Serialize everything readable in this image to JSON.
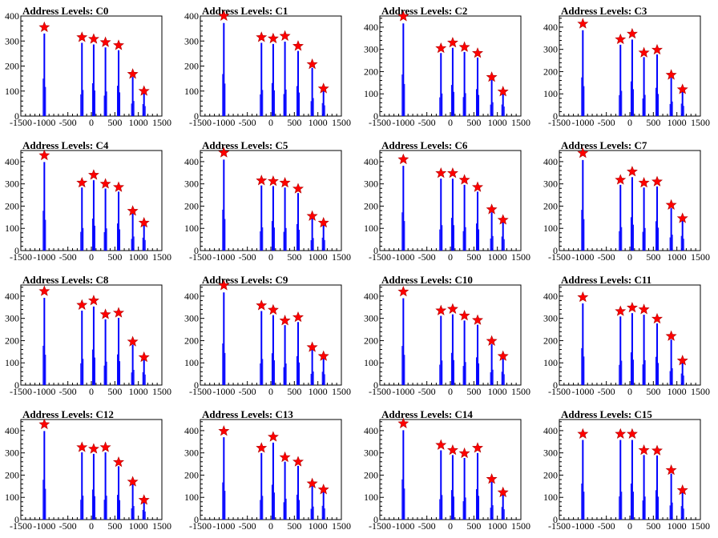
{
  "figure": {
    "x_tick_labels": [
      "-1500",
      "-1000",
      "-500",
      "0",
      "500",
      "1000",
      "1500"
    ],
    "y_tick_labels": [
      "0",
      "100",
      "200",
      "300",
      "400"
    ],
    "colors": {
      "histogram": "#0000ff",
      "peak_marker": "#ff0000",
      "marker_edge": "#b00000",
      "axes": "#000000"
    }
  },
  "chart_data": [
    {
      "type": "bar",
      "title": "Address Levels: C0",
      "xlim": [
        -1500,
        1500
      ],
      "ylim": [
        0,
        400
      ],
      "peaks": [
        {
          "x": -1000,
          "y": 355
        },
        {
          "x": -200,
          "y": 315
        },
        {
          "x": 50,
          "y": 308
        },
        {
          "x": 300,
          "y": 295
        },
        {
          "x": 580,
          "y": 283
        },
        {
          "x": 880,
          "y": 168
        },
        {
          "x": 1120,
          "y": 100
        }
      ]
    },
    {
      "type": "bar",
      "title": "Address Levels: C1",
      "xlim": [
        -1500,
        1500
      ],
      "ylim": [
        0,
        400
      ],
      "peaks": [
        {
          "x": -1000,
          "y": 400
        },
        {
          "x": -200,
          "y": 315
        },
        {
          "x": 50,
          "y": 310
        },
        {
          "x": 300,
          "y": 320
        },
        {
          "x": 580,
          "y": 280
        },
        {
          "x": 880,
          "y": 207
        },
        {
          "x": 1120,
          "y": 110
        }
      ]
    },
    {
      "type": "bar",
      "title": "Address Levels: C2",
      "xlim": [
        -1500,
        1500
      ],
      "ylim": [
        0,
        450
      ],
      "peaks": [
        {
          "x": -1000,
          "y": 448
        },
        {
          "x": -200,
          "y": 305
        },
        {
          "x": 50,
          "y": 330
        },
        {
          "x": 300,
          "y": 310
        },
        {
          "x": 580,
          "y": 283
        },
        {
          "x": 880,
          "y": 175
        },
        {
          "x": 1120,
          "y": 110
        }
      ]
    },
    {
      "type": "bar",
      "title": "Address Levels: C3",
      "xlim": [
        -1500,
        1500
      ],
      "ylim": [
        0,
        450
      ],
      "peaks": [
        {
          "x": -1000,
          "y": 415
        },
        {
          "x": -200,
          "y": 345
        },
        {
          "x": 50,
          "y": 370
        },
        {
          "x": 300,
          "y": 285
        },
        {
          "x": 580,
          "y": 298
        },
        {
          "x": 880,
          "y": 185
        },
        {
          "x": 1120,
          "y": 120
        }
      ]
    },
    {
      "type": "bar",
      "title": "Address Levels: C4",
      "xlim": [
        -1500,
        1500
      ],
      "ylim": [
        0,
        450
      ],
      "peaks": [
        {
          "x": -1000,
          "y": 428
        },
        {
          "x": -200,
          "y": 305
        },
        {
          "x": 50,
          "y": 340
        },
        {
          "x": 300,
          "y": 300
        },
        {
          "x": 580,
          "y": 285
        },
        {
          "x": 880,
          "y": 178
        },
        {
          "x": 1120,
          "y": 125
        }
      ]
    },
    {
      "type": "bar",
      "title": "Address Levels: C5",
      "xlim": [
        -1500,
        1500
      ],
      "ylim": [
        0,
        450
      ],
      "peaks": [
        {
          "x": -1000,
          "y": 440
        },
        {
          "x": -200,
          "y": 315
        },
        {
          "x": 50,
          "y": 312
        },
        {
          "x": 300,
          "y": 305
        },
        {
          "x": 580,
          "y": 278
        },
        {
          "x": 880,
          "y": 155
        },
        {
          "x": 1120,
          "y": 125
        }
      ]
    },
    {
      "type": "bar",
      "title": "Address Levels: C6",
      "xlim": [
        -1500,
        1500
      ],
      "ylim": [
        0,
        450
      ],
      "peaks": [
        {
          "x": -1000,
          "y": 410
        },
        {
          "x": -200,
          "y": 348
        },
        {
          "x": 50,
          "y": 348
        },
        {
          "x": 300,
          "y": 318
        },
        {
          "x": 580,
          "y": 285
        },
        {
          "x": 880,
          "y": 185
        },
        {
          "x": 1120,
          "y": 138
        }
      ]
    },
    {
      "type": "bar",
      "title": "Address Levels: C7",
      "xlim": [
        -1500,
        1500
      ],
      "ylim": [
        0,
        450
      ],
      "peaks": [
        {
          "x": -1000,
          "y": 438
        },
        {
          "x": -200,
          "y": 318
        },
        {
          "x": 50,
          "y": 355
        },
        {
          "x": 300,
          "y": 305
        },
        {
          "x": 580,
          "y": 310
        },
        {
          "x": 880,
          "y": 205
        },
        {
          "x": 1120,
          "y": 145
        }
      ]
    },
    {
      "type": "bar",
      "title": "Address Levels: C8",
      "xlim": [
        -1500,
        1500
      ],
      "ylim": [
        0,
        450
      ],
      "peaks": [
        {
          "x": -1000,
          "y": 422
        },
        {
          "x": -200,
          "y": 360
        },
        {
          "x": 50,
          "y": 380
        },
        {
          "x": 300,
          "y": 318
        },
        {
          "x": 580,
          "y": 325
        },
        {
          "x": 880,
          "y": 195
        },
        {
          "x": 1120,
          "y": 125
        }
      ]
    },
    {
      "type": "bar",
      "title": "Address Levels: C9",
      "xlim": [
        -1500,
        1500
      ],
      "ylim": [
        0,
        450
      ],
      "peaks": [
        {
          "x": -1000,
          "y": 448
        },
        {
          "x": -200,
          "y": 358
        },
        {
          "x": 50,
          "y": 338
        },
        {
          "x": 300,
          "y": 290
        },
        {
          "x": 580,
          "y": 305
        },
        {
          "x": 880,
          "y": 170
        },
        {
          "x": 1120,
          "y": 130
        }
      ]
    },
    {
      "type": "bar",
      "title": "Address Levels: C10",
      "xlim": [
        -1500,
        1500
      ],
      "ylim": [
        0,
        450
      ],
      "peaks": [
        {
          "x": -1000,
          "y": 420
        },
        {
          "x": -200,
          "y": 335
        },
        {
          "x": 50,
          "y": 342
        },
        {
          "x": 300,
          "y": 312
        },
        {
          "x": 580,
          "y": 292
        },
        {
          "x": 880,
          "y": 198
        },
        {
          "x": 1120,
          "y": 130
        }
      ]
    },
    {
      "type": "bar",
      "title": "Address Levels: C11",
      "xlim": [
        -1500,
        1500
      ],
      "ylim": [
        0,
        450
      ],
      "peaks": [
        {
          "x": -1000,
          "y": 395
        },
        {
          "x": -200,
          "y": 332
        },
        {
          "x": 50,
          "y": 348
        },
        {
          "x": 300,
          "y": 340
        },
        {
          "x": 580,
          "y": 298
        },
        {
          "x": 880,
          "y": 220
        },
        {
          "x": 1120,
          "y": 110
        }
      ]
    },
    {
      "type": "bar",
      "title": "Address Levels: C12",
      "xlim": [
        -1500,
        1500
      ],
      "ylim": [
        0,
        450
      ],
      "peaks": [
        {
          "x": -1000,
          "y": 428
        },
        {
          "x": -200,
          "y": 325
        },
        {
          "x": 50,
          "y": 318
        },
        {
          "x": 300,
          "y": 325
        },
        {
          "x": 580,
          "y": 258
        },
        {
          "x": 880,
          "y": 170
        },
        {
          "x": 1120,
          "y": 88
        }
      ]
    },
    {
      "type": "bar",
      "title": "Address Levels: C13",
      "xlim": [
        -1500,
        1500
      ],
      "ylim": [
        0,
        450
      ],
      "peaks": [
        {
          "x": -1000,
          "y": 398
        },
        {
          "x": -200,
          "y": 322
        },
        {
          "x": 50,
          "y": 372
        },
        {
          "x": 300,
          "y": 280
        },
        {
          "x": 580,
          "y": 260
        },
        {
          "x": 880,
          "y": 162
        },
        {
          "x": 1120,
          "y": 135
        }
      ]
    },
    {
      "type": "bar",
      "title": "Address Levels: C14",
      "xlim": [
        -1500,
        1500
      ],
      "ylim": [
        0,
        450
      ],
      "peaks": [
        {
          "x": -1000,
          "y": 432
        },
        {
          "x": -200,
          "y": 335
        },
        {
          "x": 50,
          "y": 312
        },
        {
          "x": 300,
          "y": 298
        },
        {
          "x": 580,
          "y": 322
        },
        {
          "x": 880,
          "y": 182
        },
        {
          "x": 1120,
          "y": 122
        }
      ]
    },
    {
      "type": "bar",
      "title": "Address Levels: C15",
      "xlim": [
        -1500,
        1500
      ],
      "ylim": [
        0,
        450
      ],
      "peaks": [
        {
          "x": -1000,
          "y": 385
        },
        {
          "x": -200,
          "y": 385
        },
        {
          "x": 50,
          "y": 385
        },
        {
          "x": 300,
          "y": 312
        },
        {
          "x": 580,
          "y": 310
        },
        {
          "x": 880,
          "y": 222
        },
        {
          "x": 1120,
          "y": 132
        }
      ]
    }
  ]
}
